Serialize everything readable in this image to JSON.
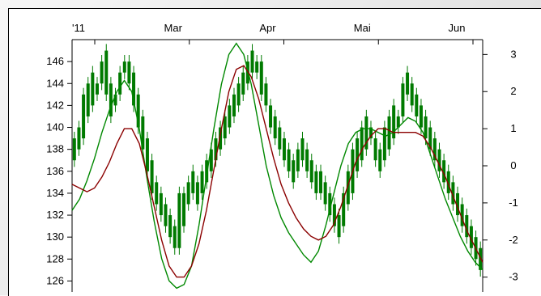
{
  "chart_data": {
    "type": "candlestick",
    "x_tick_labels": [
      "'11",
      "Mar",
      "Apr",
      "Mai",
      "Jun"
    ],
    "y_left": {
      "range": [
        125,
        148
      ],
      "ticks": [
        126,
        128,
        130,
        132,
        134,
        136,
        138,
        140,
        142,
        144,
        146
      ]
    },
    "y_right": {
      "range": [
        -3.4,
        3.4
      ],
      "ticks": [
        3,
        2,
        1,
        0,
        -1,
        -2,
        -3
      ]
    },
    "grid": false,
    "colors": {
      "candle": "#007a00",
      "wick": "#007a00",
      "oscillator_fast": "#008800",
      "oscillator_slow": "#8b0000"
    },
    "candles": [
      [
        137,
        139
      ],
      [
        138,
        140
      ],
      [
        139,
        143
      ],
      [
        141,
        144
      ],
      [
        142,
        145
      ],
      [
        143,
        144
      ],
      [
        144,
        146
      ],
      [
        143,
        147
      ],
      [
        141,
        144
      ],
      [
        142,
        143
      ],
      [
        143,
        145
      ],
      [
        145,
        146
      ],
      [
        144,
        146
      ],
      [
        142,
        145
      ],
      [
        140,
        143
      ],
      [
        138,
        141
      ],
      [
        136,
        139
      ],
      [
        134,
        137
      ],
      [
        133,
        135
      ],
      [
        132,
        134
      ],
      [
        131,
        133
      ],
      [
        130,
        132
      ],
      [
        129,
        131
      ],
      [
        129,
        134
      ],
      [
        131,
        134
      ],
      [
        133,
        135
      ],
      [
        134,
        136
      ],
      [
        133,
        135
      ],
      [
        134,
        136
      ],
      [
        135,
        137
      ],
      [
        136,
        138
      ],
      [
        137,
        139
      ],
      [
        138,
        140
      ],
      [
        139,
        141
      ],
      [
        140,
        142
      ],
      [
        141,
        143
      ],
      [
        142,
        144
      ],
      [
        143,
        145
      ],
      [
        144,
        146
      ],
      [
        145,
        147
      ],
      [
        145,
        146
      ],
      [
        143,
        146
      ],
      [
        142,
        144
      ],
      [
        140,
        142
      ],
      [
        139,
        141
      ],
      [
        138,
        140
      ],
      [
        137,
        139
      ],
      [
        136,
        138
      ],
      [
        135,
        137
      ],
      [
        136,
        138
      ],
      [
        137,
        139
      ],
      [
        136,
        138
      ],
      [
        135,
        137
      ],
      [
        134,
        136
      ],
      [
        134,
        136
      ],
      [
        133,
        135
      ],
      [
        132,
        134
      ],
      [
        131,
        133
      ],
      [
        130,
        132
      ],
      [
        131,
        134
      ],
      [
        133,
        136
      ],
      [
        134,
        138
      ],
      [
        136,
        139
      ],
      [
        137,
        140
      ],
      [
        138,
        141
      ],
      [
        139,
        140
      ],
      [
        137,
        139
      ],
      [
        136,
        138
      ],
      [
        137,
        140
      ],
      [
        138,
        141
      ],
      [
        139,
        142
      ],
      [
        140,
        141
      ],
      [
        141,
        144
      ],
      [
        143,
        145
      ],
      [
        142,
        144
      ],
      [
        141,
        143
      ],
      [
        140,
        142
      ],
      [
        139,
        141
      ],
      [
        138,
        140
      ],
      [
        137,
        139
      ],
      [
        136,
        138
      ],
      [
        135,
        137
      ],
      [
        134,
        136
      ],
      [
        133,
        135
      ],
      [
        132,
        134
      ],
      [
        131,
        133
      ],
      [
        130,
        132
      ],
      [
        129,
        131
      ],
      [
        128,
        130
      ],
      [
        127,
        129
      ]
    ],
    "series": [
      {
        "axis": "right",
        "values": [
          -1.2,
          -0.9,
          -0.4,
          0.2,
          0.9,
          1.5,
          2.0,
          2.3,
          2.0,
          1.0,
          -0.3,
          -1.5,
          -2.5,
          -3.1,
          -3.3,
          -3.2,
          -2.7,
          -1.6,
          -0.3,
          1.0,
          2.2,
          3.0,
          3.3,
          3.0,
          2.2,
          1.1,
          0.0,
          -0.8,
          -1.4,
          -1.8,
          -2.1,
          -2.4,
          -2.6,
          -2.3,
          -1.6,
          -0.8,
          0.0,
          0.6,
          0.9,
          1.0,
          1.0,
          0.9,
          0.8,
          0.9,
          1.1,
          1.3,
          1.2,
          0.9,
          0.3,
          -0.3,
          -0.9,
          -1.4,
          -1.9,
          -2.3,
          -2.6,
          -2.8
        ]
      },
      {
        "axis": "right",
        "values": [
          -0.5,
          -0.6,
          -0.7,
          -0.6,
          -0.3,
          0.1,
          0.6,
          1.0,
          1.0,
          0.6,
          -0.2,
          -1.1,
          -2.0,
          -2.7,
          -3.0,
          -3.0,
          -2.7,
          -2.1,
          -1.2,
          -0.1,
          1.0,
          2.0,
          2.6,
          2.7,
          2.4,
          1.8,
          1.0,
          0.2,
          -0.5,
          -1.0,
          -1.4,
          -1.7,
          -1.9,
          -2.0,
          -1.9,
          -1.6,
          -1.1,
          -0.5,
          0.1,
          0.5,
          0.8,
          1.0,
          1.0,
          0.9,
          0.9,
          0.9,
          0.9,
          0.8,
          0.5,
          0.1,
          -0.3,
          -0.8,
          -1.3,
          -1.8,
          -2.2,
          -2.6
        ]
      }
    ]
  }
}
